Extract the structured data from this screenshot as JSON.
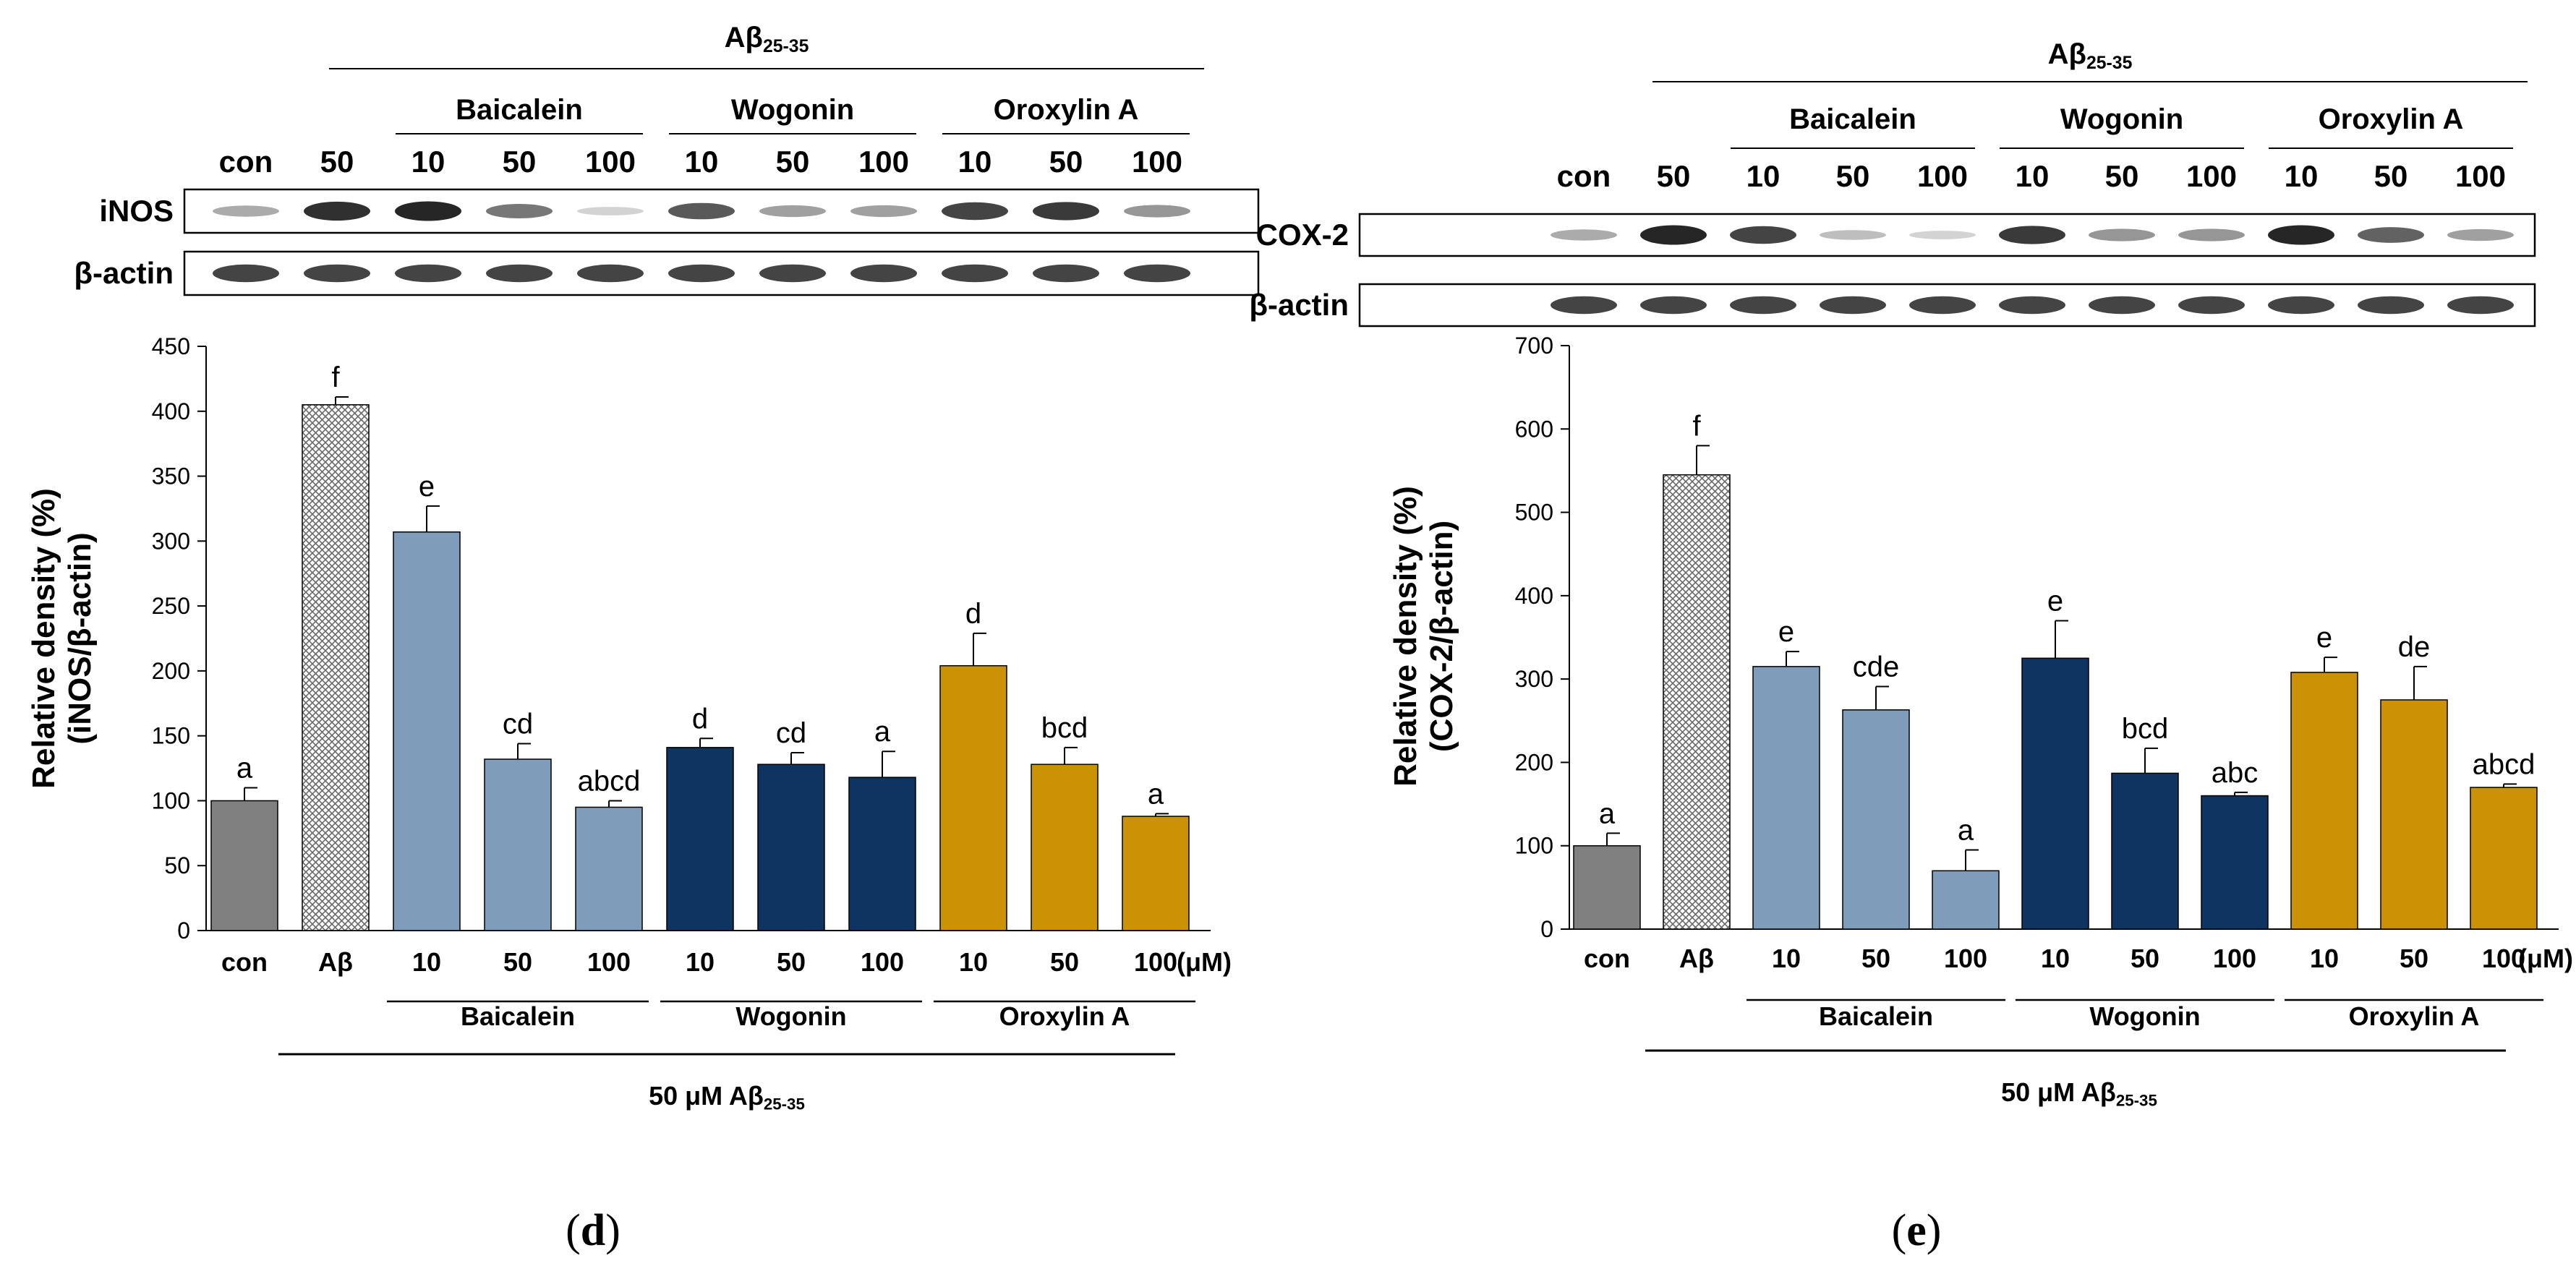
{
  "panels": [
    {
      "key": "d",
      "panel_label": "d",
      "blot": {
        "header_main": "Aβ",
        "header_sub": "25-35",
        "groups": [
          "Baicalein",
          "Wogonin",
          "Oroxylin A"
        ],
        "lane_labels": [
          "con",
          "50",
          "10",
          "50",
          "100",
          "10",
          "50",
          "100",
          "10",
          "50",
          "100"
        ],
        "rows": [
          {
            "label": "iNOS",
            "intensities": [
              0.3,
              0.9,
              0.95,
              0.55,
              0.1,
              0.7,
              0.35,
              0.35,
              0.8,
              0.85,
              0.4
            ]
          },
          {
            "label": "β-actin",
            "intensities": [
              0.8,
              0.8,
              0.8,
              0.8,
              0.8,
              0.8,
              0.8,
              0.8,
              0.8,
              0.8,
              0.8
            ]
          }
        ]
      },
      "chart_data": {
        "type": "bar",
        "title": "",
        "ylabel_line1": "Relative density (%)",
        "ylabel_line2": "(iNOS/β-actin)",
        "ylim": [
          0,
          450
        ],
        "yticks": [
          0,
          50,
          100,
          150,
          200,
          250,
          300,
          350,
          400,
          450
        ],
        "categories": [
          "con",
          "Aβ",
          "10",
          "50",
          "100",
          "10",
          "50",
          "100",
          "10",
          "50",
          "100"
        ],
        "unit": "(μM)",
        "values": [
          100,
          405,
          307,
          132,
          95,
          141,
          128,
          118,
          204,
          128,
          88
        ],
        "errors": [
          10,
          6,
          20,
          12,
          5,
          7,
          9,
          20,
          25,
          13,
          2
        ],
        "letters": [
          "a",
          "f",
          "e",
          "cd",
          "abcd",
          "d",
          "cd",
          "a",
          "d",
          "bcd",
          "a"
        ],
        "groups": [
          "Baicalein",
          "Wogonin",
          "Oroxylin A"
        ],
        "bottom_label_main": "50 μM Aβ",
        "bottom_label_sub": "25-35"
      }
    },
    {
      "key": "e",
      "panel_label": "e",
      "blot": {
        "header_main": "Aβ",
        "header_sub": "25-35",
        "groups": [
          "Baicalein",
          "Wogonin",
          "Oroxylin A"
        ],
        "lane_labels": [
          "con",
          "50",
          "10",
          "50",
          "100",
          "10",
          "50",
          "100",
          "10",
          "50",
          "100"
        ],
        "rows": [
          {
            "label": "COX-2",
            "intensities": [
              0.3,
              0.95,
              0.8,
              0.2,
              0.1,
              0.85,
              0.4,
              0.4,
              0.95,
              0.65,
              0.35
            ]
          },
          {
            "label": "β-actin",
            "intensities": [
              0.8,
              0.8,
              0.8,
              0.8,
              0.8,
              0.8,
              0.8,
              0.8,
              0.8,
              0.8,
              0.8
            ]
          }
        ]
      },
      "chart_data": {
        "type": "bar",
        "title": "",
        "ylabel_line1": "Relative density (%)",
        "ylabel_line2": "(COX-2/β-actin)",
        "ylim": [
          0,
          700
        ],
        "yticks": [
          0,
          100,
          200,
          300,
          400,
          500,
          600,
          700
        ],
        "categories": [
          "con",
          "Aβ",
          "10",
          "50",
          "100",
          "10",
          "50",
          "100",
          "10",
          "50",
          "100"
        ],
        "unit": "(μM)",
        "values": [
          100,
          545,
          315,
          263,
          70,
          325,
          187,
          160,
          308,
          275,
          170
        ],
        "errors": [
          15,
          35,
          18,
          28,
          25,
          45,
          30,
          4,
          18,
          40,
          4
        ],
        "letters": [
          "a",
          "f",
          "e",
          "cde",
          "a",
          "e",
          "bcd",
          "abc",
          "e",
          "de",
          "abcd"
        ],
        "groups": [
          "Baicalein",
          "Wogonin",
          "Oroxylin A"
        ],
        "bottom_label_main": "50 μM Aβ",
        "bottom_label_sub": "25-35"
      }
    }
  ],
  "colors": {
    "con": "#808080",
    "abeta_fill": "#ffffff",
    "baicalein": "#7f9cbb",
    "wogonin": "#0e3461",
    "oroxylin": "#cc9206",
    "axis": "#000000"
  }
}
